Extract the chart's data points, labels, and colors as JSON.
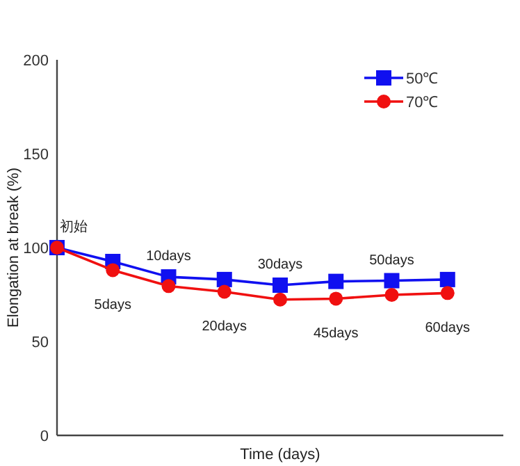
{
  "chart_data": {
    "type": "line",
    "xlabel": "Time (days)",
    "ylabel": "Elongation at break (%)",
    "categories": [
      "初始",
      "5days",
      "10days",
      "20days",
      "30days",
      "45days",
      "50days",
      "60days"
    ],
    "series": [
      {
        "name": "50℃",
        "color": "#1010f0",
        "marker": "square",
        "values": [
          100,
          92.6,
          84.4,
          83,
          80,
          82,
          82.4,
          83
        ]
      },
      {
        "name": "70℃",
        "color": "#f01010",
        "marker": "circle",
        "values": [
          100,
          88,
          79.5,
          76.5,
          72.3,
          72.8,
          74.8,
          75.8
        ]
      }
    ],
    "ylim": [
      0,
      200
    ],
    "yticks": [
      0,
      50,
      100,
      150,
      200
    ],
    "grid": false,
    "legend": "top right",
    "line_style": "solid"
  }
}
